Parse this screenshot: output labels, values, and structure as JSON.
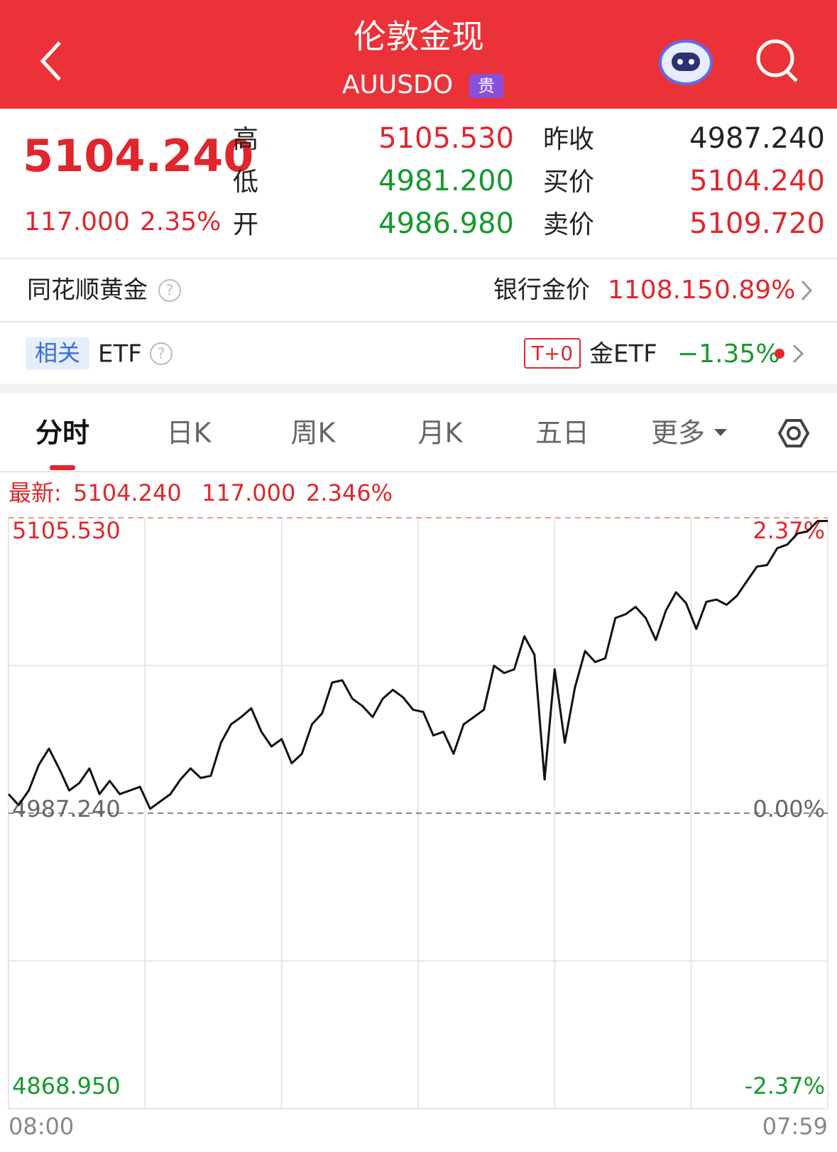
{
  "header": {
    "title": "伦敦金现",
    "code": "AUUSDO",
    "badge": "贵"
  },
  "quote": {
    "price": "5104.240",
    "change": "117.000",
    "change_pct": "2.35%",
    "middle": [
      {
        "label": "高",
        "value": "5105.530"
      },
      {
        "label": "低",
        "value": "4981.200"
      },
      {
        "label": "开",
        "value": "4986.980"
      }
    ],
    "right": [
      {
        "label": "昨收",
        "value": "4987.240"
      },
      {
        "label": "买价",
        "value": "5104.240"
      },
      {
        "label": "卖价",
        "value": "5109.720"
      }
    ]
  },
  "gold_row": {
    "name": "同花顺黄金",
    "label": "银行金价",
    "price": "1108.15",
    "change_pct": "0.89%"
  },
  "etf_row": {
    "tag": "相关",
    "name": "ETF",
    "badge": "T+0",
    "fund": "金ETF",
    "change_pct": "−1.35%"
  },
  "tabs": [
    "分时",
    "日K",
    "周K",
    "月K",
    "五日",
    "更多"
  ],
  "latest": {
    "label": "最新:",
    "price": "5104.240",
    "change": "117.000",
    "change_pct": "2.346%"
  },
  "chart_data": {
    "type": "line",
    "categories": [
      "08:00",
      null,
      null,
      null,
      null,
      null,
      null,
      null,
      null,
      null,
      null,
      null,
      null,
      null,
      null,
      null,
      null,
      null,
      null,
      null,
      null,
      null,
      null,
      null,
      null,
      null,
      null,
      null,
      null,
      null,
      null,
      null,
      null,
      null,
      null,
      null,
      null,
      null,
      null,
      null,
      null,
      null,
      null,
      null,
      null,
      null,
      null,
      null,
      null,
      null,
      null,
      null,
      null,
      null,
      null,
      null,
      null,
      null,
      null,
      null,
      null,
      null,
      null,
      null,
      null,
      null,
      null,
      null,
      null,
      null,
      null,
      null,
      null,
      null,
      null,
      null,
      null,
      null,
      null,
      null,
      null,
      "07:59"
    ],
    "values": [
      4994.88,
      4990.47,
      4996.35,
      5006.64,
      5013.1,
      5005.17,
      4996.35,
      4999.29,
      5005.17,
      4994.88,
      5000.17,
      4994.88,
      4996.35,
      4997.82,
      4989.0,
      4991.94,
      4994.88,
      5000.76,
      5005.17,
      5001.35,
      5002.23,
      5015.45,
      5022.8,
      5025.74,
      5029.27,
      5019.86,
      5013.98,
      5016.92,
      5007.23,
      5011.05,
      5022.8,
      5027.21,
      5039.55,
      5040.44,
      5033.09,
      5030.15,
      5025.74,
      5033.09,
      5036.62,
      5033.68,
      5028.68,
      5027.8,
      5018.39,
      5019.86,
      5011.05,
      5022.8,
      5025.74,
      5028.68,
      5046.31,
      5043.37,
      5044.84,
      5058.07,
      5050.72,
      5000.76,
      5044.84,
      5015.45,
      5037.5,
      5052.19,
      5047.78,
      5049.25,
      5065.42,
      5066.89,
      5069.83,
      5065.42,
      5056.6,
      5068.36,
      5075.7,
      5071.3,
      5061.01,
      5071.88,
      5072.76,
      5070.71,
      5074.23,
      5080.11,
      5085.99,
      5086.58,
      5093.34,
      5094.81,
      5099.22,
      5100.1,
      5104.21,
      5104.24
    ],
    "color": "#111111",
    "ylim": [
      4868.95,
      5105.53
    ],
    "yticks": [
      {
        "value": 4868.95,
        "label": "4868.950"
      },
      {
        "value": 4987.24,
        "label": "4987.240"
      },
      {
        "value": 5105.53,
        "label": "5105.530"
      }
    ],
    "y2lim": [
      -2.37,
      2.37
    ],
    "y2ticks": [
      {
        "value": -2.37,
        "label": "-2.37%"
      },
      {
        "value": 0,
        "label": "0.00%"
      },
      {
        "value": 2.37,
        "label": "2.37%"
      }
    ],
    "grid": true
  }
}
